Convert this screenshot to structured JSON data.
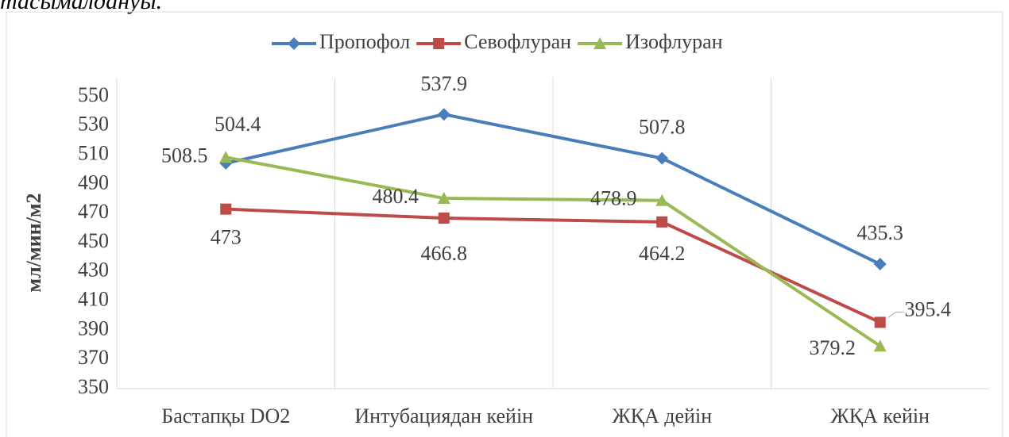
{
  "caption": "тасымалдануы.",
  "chart_data": {
    "type": "line",
    "y_label": "мл/мин/м2",
    "categories": [
      "Бастапқы DO2",
      "Интубациядан кейін",
      "ЖҚА дейін",
      "ЖҚА кейін"
    ],
    "series": [
      {
        "name": "Пропофол",
        "color": "#4a7ebb",
        "marker": "diamond",
        "values": [
          504.4,
          537.9,
          507.8,
          435.3
        ]
      },
      {
        "name": "Севофлуран",
        "color": "#be4b48",
        "marker": "square",
        "values": [
          473,
          466.8,
          464.2,
          395.4
        ]
      },
      {
        "name": "Изофлуран",
        "color": "#98b954",
        "marker": "triangle",
        "values": [
          508.5,
          480.4,
          478.9,
          379.2
        ]
      }
    ],
    "ylim": [
      350,
      563
    ],
    "yticks": [
      350,
      370,
      390,
      410,
      430,
      450,
      470,
      490,
      510,
      530,
      550
    ],
    "grid": true,
    "legend": "top"
  }
}
